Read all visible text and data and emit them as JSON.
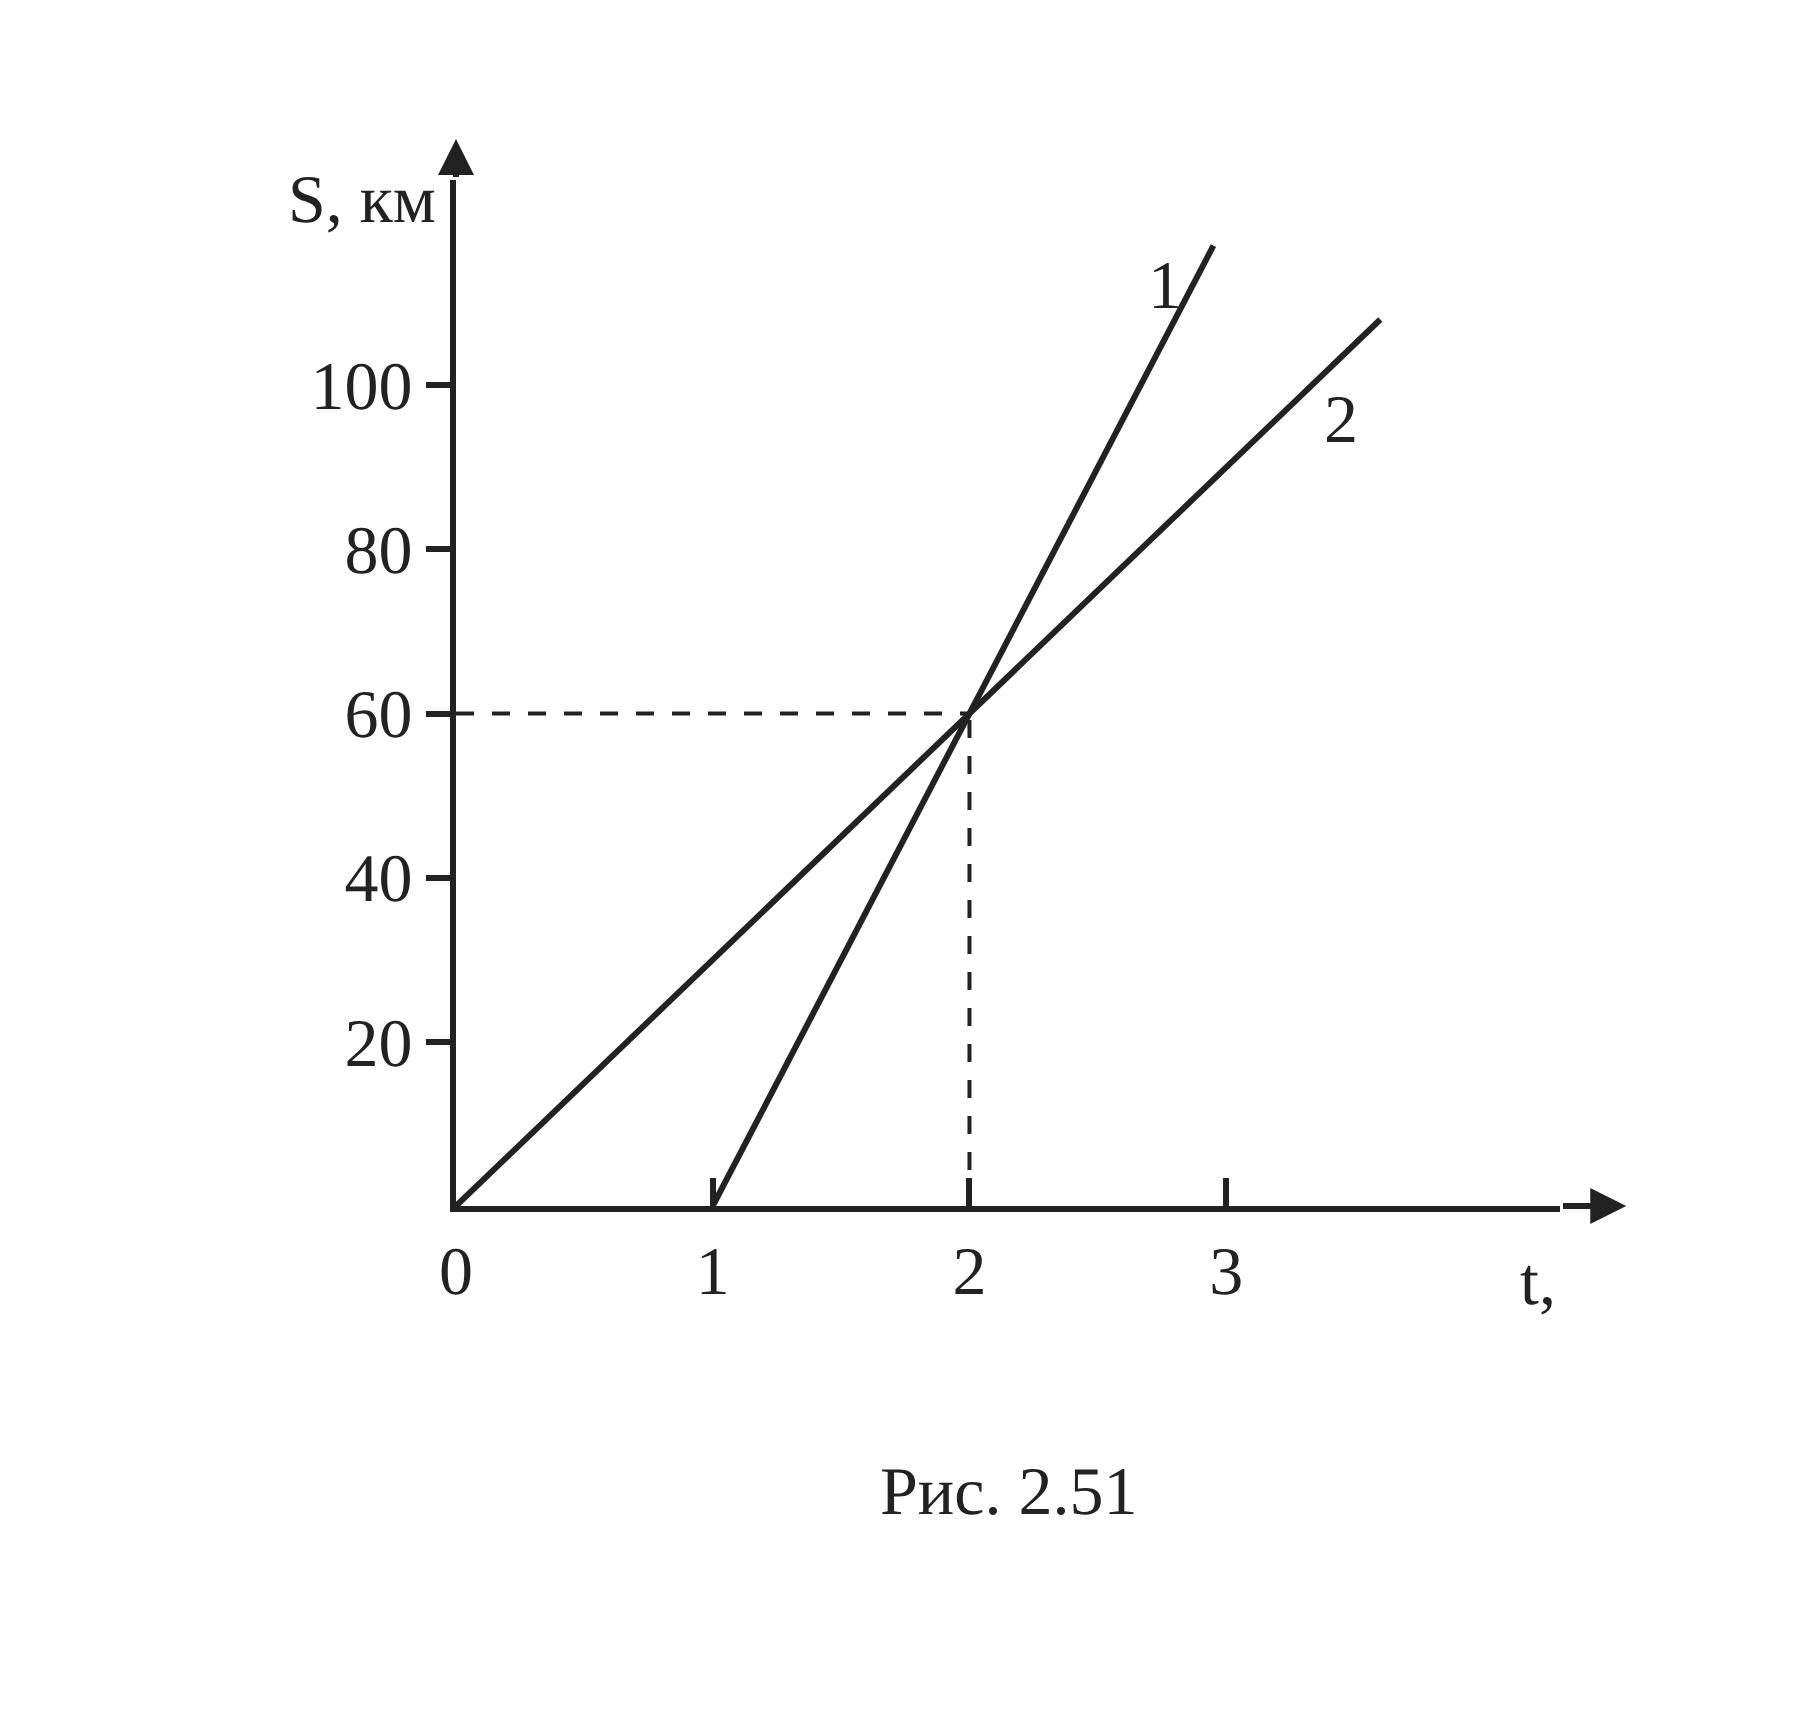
{
  "chart_data": {
    "type": "line",
    "xlabel": "t,",
    "ylabel": "S, км",
    "series": [
      {
        "name": "1",
        "color": "#222222",
        "x": [
          1,
          2.95
        ],
        "values": [
          0,
          117
        ]
      },
      {
        "name": "2",
        "color": "#222222",
        "x": [
          0,
          3.6
        ],
        "values": [
          0,
          108
        ]
      }
    ],
    "xlim": [
      0,
      4.3
    ],
    "ylim": [
      0,
      125
    ],
    "xticks": [
      0,
      1,
      2,
      3
    ],
    "yticks": [
      20,
      40,
      60,
      80,
      100
    ],
    "ref_lines": [
      {
        "axis": "x",
        "value": 2,
        "line_style": "dashed",
        "color": "#222222"
      },
      {
        "axis": "y",
        "value": 60,
        "line_style": "dashed",
        "color": "#222222"
      }
    ],
    "annotations": [
      "Рис. 2.51"
    ],
    "legend": false,
    "marker": "none",
    "line_style": "solid"
  }
}
